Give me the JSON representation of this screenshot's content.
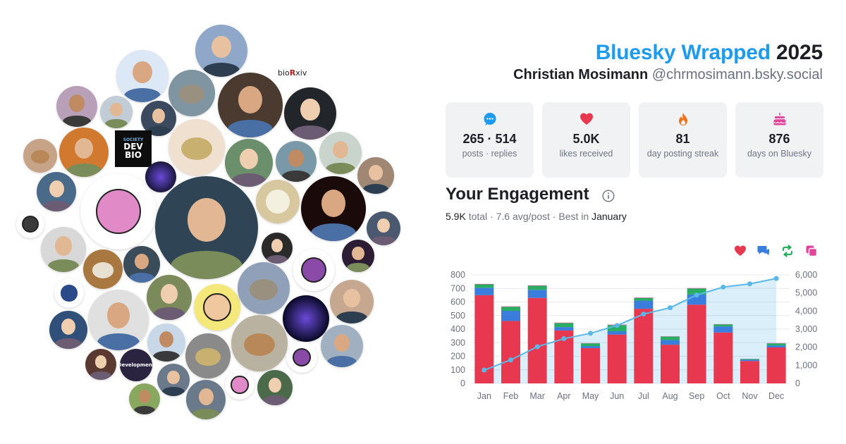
{
  "header": {
    "brand": "Bluesky Wrapped",
    "year": "2025",
    "display_name": "Christian Mosimann",
    "handle": "@chrmosimann.bsky.social"
  },
  "stats": [
    {
      "icon": "speech-bubble-icon",
      "value": "265 · 514",
      "label": "posts · replies",
      "color": "#1d9bf0"
    },
    {
      "icon": "heart-icon",
      "value": "5.0K",
      "label": "likes received",
      "color": "#e8384f"
    },
    {
      "icon": "flame-icon",
      "value": "81",
      "label": "day posting streak",
      "color": "#f2711c"
    },
    {
      "icon": "cake-icon",
      "value": "876",
      "label": "days on Bluesky",
      "color": "#e0459b"
    }
  ],
  "engagement": {
    "title": "Your Engagement",
    "total": "5.9K",
    "total_label": "total",
    "avg": "7.6 avg/post",
    "best_prefix": "Best in",
    "best_month": "January"
  },
  "avatar_badges": {
    "devbio_society": "SOCIETY",
    "devbio_line1": "DEV",
    "devbio_line2": "BIO",
    "development": "Development",
    "biorxiv_prefix": "bio",
    "biorxiv_rx": "R",
    "biorxiv_suffix": "xiv"
  },
  "colors": {
    "likes": "#e8384f",
    "replies": "#3a7ddc",
    "reposts": "#27ae60",
    "quotes": "#e0459b",
    "cumulative": "#5ab8e8"
  },
  "chart_data": {
    "type": "bar",
    "stacked": true,
    "categories": [
      "Jan",
      "Feb",
      "Mar",
      "Apr",
      "May",
      "Jun",
      "Jul",
      "Aug",
      "Sep",
      "Oct",
      "Nov",
      "Dec"
    ],
    "series": [
      {
        "legend_icon": "heart-icon",
        "color": "#e8384f",
        "values": [
          650,
          460,
          630,
          390,
          260,
          360,
          550,
          285,
          580,
          375,
          165,
          265
        ]
      },
      {
        "legend_icon": "reply-icon",
        "color": "#3a7ddc",
        "values": [
          55,
          75,
          60,
          25,
          15,
          25,
          60,
          35,
          75,
          45,
          10,
          15
        ]
      },
      {
        "legend_icon": "repost-icon",
        "color": "#27ae60",
        "values": [
          25,
          30,
          30,
          30,
          20,
          45,
          20,
          25,
          45,
          15,
          5,
          15
        ]
      },
      {
        "legend_icon": "quote-icon",
        "color": "#e0459b",
        "values": [
          3,
          3,
          3,
          3,
          2,
          3,
          3,
          2,
          3,
          2,
          1,
          2
        ]
      }
    ],
    "cumulative": {
      "type": "area-line",
      "axis": "right",
      "color": "#5ab8e8",
      "values": [
        733,
        1301,
        2024,
        2472,
        2769,
        3202,
        3835,
        4182,
        4885,
        5322,
        5503,
        5800
      ]
    },
    "y_left": {
      "min": 0,
      "max": 800,
      "ticks": [
        "0",
        "100",
        "200",
        "300",
        "400",
        "500",
        "600",
        "700",
        "800"
      ]
    },
    "y_right": {
      "min": 0,
      "max": 6000,
      "ticks": [
        "0",
        "1,000",
        "2,000",
        "3,000",
        "4,000",
        "5,000",
        "6,000"
      ]
    },
    "grid": true
  }
}
